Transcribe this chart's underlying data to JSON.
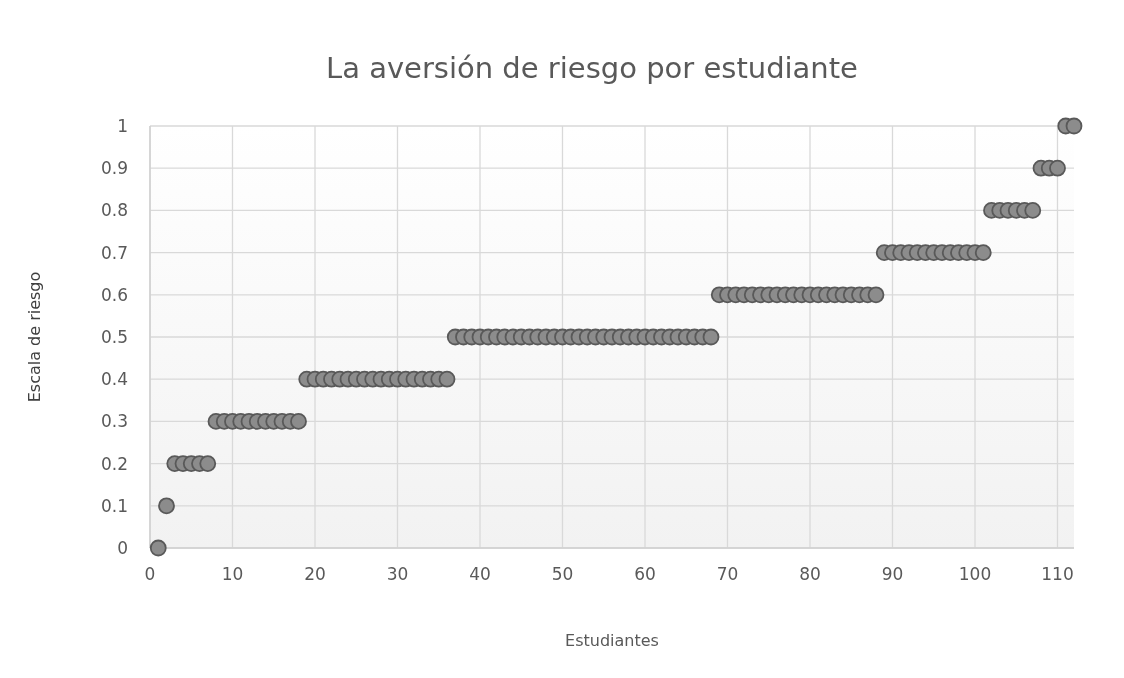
{
  "chart_data": {
    "type": "scatter",
    "title": "La aversión de riesgo por estudiante",
    "xlabel": "Estudiantes",
    "ylabel": "Escala de riesgo",
    "x": [
      1,
      2,
      3,
      4,
      5,
      6,
      7,
      8,
      9,
      10,
      11,
      12,
      13,
      14,
      15,
      16,
      17,
      18,
      19,
      20,
      21,
      22,
      23,
      24,
      25,
      26,
      27,
      28,
      29,
      30,
      31,
      32,
      33,
      34,
      35,
      36,
      37,
      38,
      39,
      40,
      41,
      42,
      43,
      44,
      45,
      46,
      47,
      48,
      49,
      50,
      51,
      52,
      53,
      54,
      55,
      56,
      57,
      58,
      59,
      60,
      61,
      62,
      63,
      64,
      65,
      66,
      67,
      68,
      69,
      70,
      71,
      72,
      73,
      74,
      75,
      76,
      77,
      78,
      79,
      80,
      81,
      82,
      83,
      84,
      85,
      86,
      87,
      88,
      89,
      90,
      91,
      92,
      93,
      94,
      95,
      96,
      97,
      98,
      99,
      100,
      101,
      102,
      103,
      104,
      105,
      106,
      107,
      108,
      109,
      110,
      111,
      112
    ],
    "series": [
      {
        "color": "#8c8c8c",
        "values": [
          0,
          0.1,
          0.2,
          0.2,
          0.2,
          0.2,
          0.2,
          0.3,
          0.3,
          0.3,
          0.3,
          0.3,
          0.3,
          0.3,
          0.3,
          0.3,
          0.3,
          0.3,
          0.4,
          0.4,
          0.4,
          0.4,
          0.4,
          0.4,
          0.4,
          0.4,
          0.4,
          0.4,
          0.4,
          0.4,
          0.4,
          0.4,
          0.4,
          0.4,
          0.4,
          0.4,
          0.5,
          0.5,
          0.5,
          0.5,
          0.5,
          0.5,
          0.5,
          0.5,
          0.5,
          0.5,
          0.5,
          0.5,
          0.5,
          0.5,
          0.5,
          0.5,
          0.5,
          0.5,
          0.5,
          0.5,
          0.5,
          0.5,
          0.5,
          0.5,
          0.5,
          0.5,
          0.5,
          0.5,
          0.5,
          0.5,
          0.5,
          0.5,
          0.6,
          0.6,
          0.6,
          0.6,
          0.6,
          0.6,
          0.6,
          0.6,
          0.6,
          0.6,
          0.6,
          0.6,
          0.6,
          0.6,
          0.6,
          0.6,
          0.6,
          0.6,
          0.6,
          0.6,
          0.7,
          0.7,
          0.7,
          0.7,
          0.7,
          0.7,
          0.7,
          0.7,
          0.7,
          0.7,
          0.7,
          0.7,
          0.7,
          0.8,
          0.8,
          0.8,
          0.8,
          0.8,
          0.8,
          0.9,
          0.9,
          0.9,
          1,
          1
        ]
      }
    ],
    "xlim": [
      0,
      112
    ],
    "xticks": [
      0,
      10,
      20,
      30,
      40,
      50,
      60,
      70,
      80,
      90,
      100,
      110
    ],
    "ylim": [
      0,
      1
    ],
    "yticks": [
      0,
      0.1,
      0.2,
      0.3,
      0.4,
      0.5,
      0.6,
      0.7,
      0.8,
      0.9,
      1
    ],
    "grid": true,
    "marker": "circle"
  }
}
